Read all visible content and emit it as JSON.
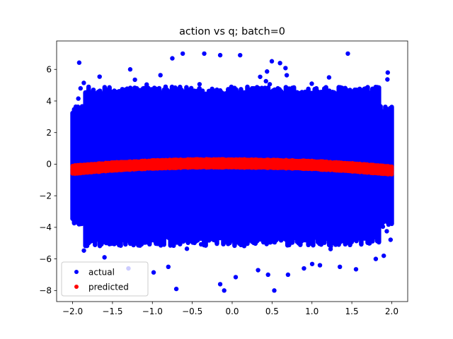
{
  "chart_data": {
    "type": "scatter",
    "title": "action vs q; batch=0",
    "xlabel": "",
    "ylabel": "",
    "xlim": [
      -2.2,
      2.2
    ],
    "ylim": [
      -8.7,
      7.8
    ],
    "x_ticks": [
      -2.0,
      -1.5,
      -1.0,
      -0.5,
      0.0,
      0.5,
      1.0,
      1.5,
      2.0
    ],
    "x_tick_labels": [
      "−2.0",
      "−1.5",
      "−1.0",
      "−0.5",
      "0.0",
      "0.5",
      "1.0",
      "1.5",
      "2.0"
    ],
    "y_ticks": [
      -8,
      -6,
      -4,
      -2,
      0,
      2,
      4,
      6
    ],
    "y_tick_labels": [
      "−8",
      "−6",
      "−4",
      "−2",
      "0",
      "2",
      "4",
      "6"
    ],
    "grid": false,
    "legend_position": "lower-left",
    "series": [
      {
        "name": "actual",
        "color": "#0000ff",
        "marker": "dot",
        "description": "dense cloud of points for x in [-2, 2], y roughly spread from -8 to 7 around 0",
        "x_range": [
          -2.0,
          2.0
        ],
        "y_range": [
          -8.0,
          7.0
        ],
        "y_center": 0.0,
        "outlier_points": [
          [
            -0.35,
            7.0
          ],
          [
            -0.15,
            6.9
          ],
          [
            1.45,
            7.0
          ],
          [
            -0.75,
            6.7
          ],
          [
            0.6,
            6.4
          ],
          [
            1.95,
            5.8
          ],
          [
            -1.9,
            4.8
          ],
          [
            -0.7,
            -7.9
          ],
          [
            -0.1,
            -8.0
          ],
          [
            -0.15,
            -7.6
          ],
          [
            0.45,
            -7.0
          ],
          [
            0.7,
            -7.0
          ],
          [
            1.35,
            -6.5
          ],
          [
            -1.3,
            -6.6
          ],
          [
            -0.8,
            -6.5
          ],
          [
            1.8,
            -6.0
          ],
          [
            1.9,
            -5.8
          ],
          [
            -1.6,
            -5.9
          ],
          [
            0.9,
            -6.6
          ],
          [
            1.1,
            -6.4
          ]
        ]
      },
      {
        "name": "predicted",
        "color": "#ff0000",
        "marker": "dot",
        "description": "narrow band forming a shallow inverted parabola",
        "x": [
          -2.0,
          -1.5,
          -1.0,
          -0.5,
          0.0,
          0.5,
          1.0,
          1.5,
          2.0
        ],
        "y": [
          -0.35,
          -0.15,
          -0.02,
          0.05,
          0.05,
          0.02,
          -0.05,
          -0.2,
          -0.4
        ]
      }
    ]
  }
}
